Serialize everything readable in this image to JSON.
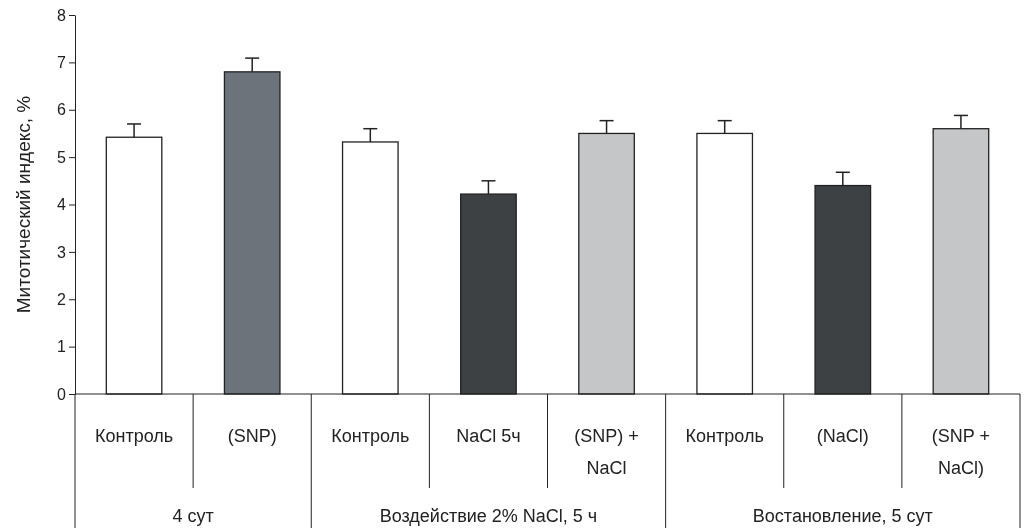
{
  "chart_data": {
    "type": "bar",
    "ylabel": "Митотический индекс, %",
    "categories": [
      "Контроль",
      "(SNP)",
      "Контроль",
      "NaCl 5ч",
      "(SNP) + NaCl",
      "Контроль",
      "(NaCl)",
      "(SNP + NaCl)"
    ],
    "values": [
      5.42,
      6.8,
      5.32,
      4.22,
      5.5,
      5.5,
      4.4,
      5.6
    ],
    "colors": [
      "#ffffff",
      "#6d737b",
      "#ffffff",
      "#3d4144",
      "#c4c6c8",
      "#ffffff",
      "#3d4144",
      "#c4c6c8"
    ],
    "errors": [
      [
        5.42,
        5.7
      ],
      [
        6.8,
        7.09
      ],
      [
        5.32,
        5.6
      ],
      [
        4.22,
        4.5
      ],
      [
        5.5,
        5.77
      ],
      [
        5.5,
        5.77
      ],
      [
        4.4,
        4.68
      ],
      [
        5.6,
        5.88
      ]
    ],
    "ylim": [
      0,
      8
    ],
    "yticks": [
      0,
      1,
      2,
      3,
      4,
      5,
      6,
      7,
      8
    ],
    "grid": false,
    "annotations": [
      "4 сут",
      "Воздействие 2% NaCl, 5 ч",
      "Востановление, 5 сут"
    ]
  }
}
